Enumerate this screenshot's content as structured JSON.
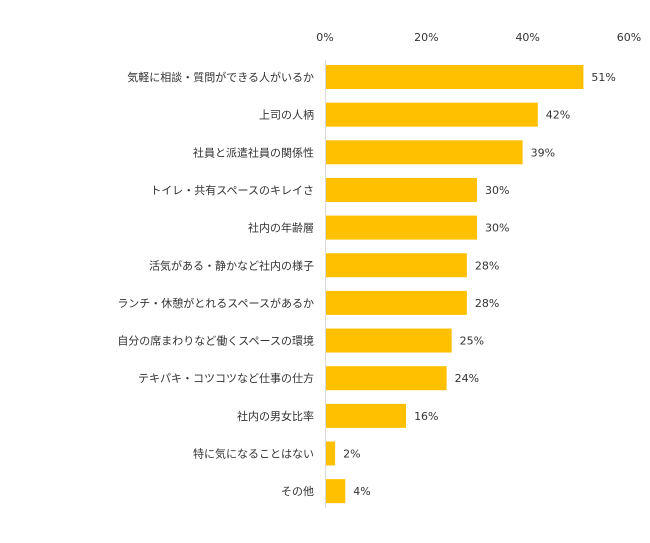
{
  "chart_data": {
    "type": "bar",
    "orientation": "horizontal",
    "categories": [
      "気軽に相談・質問ができる人がいるか",
      "上司の人柄",
      "社員と派遣社員の関係性",
      "トイレ・共有スペースのキレイさ",
      "社内の年齢層",
      "活気がある・静かなど社内の様子",
      "ランチ・休憩がとれるスペースがあるか",
      "自分の席まわりなど働くスペースの環境",
      "テキパキ・コツコツなど仕事の仕方",
      "社内の男女比率",
      "特に気になることはない",
      "その他"
    ],
    "values": [
      51,
      42,
      39,
      30,
      30,
      28,
      28,
      25,
      24,
      16,
      2,
      4
    ],
    "value_labels": [
      "51%",
      "42%",
      "39%",
      "30%",
      "30%",
      "28%",
      "28%",
      "25%",
      "24%",
      "16%",
      "2%",
      "4%"
    ],
    "xlim": [
      0,
      60
    ],
    "x_ticks": [
      0,
      20,
      40,
      60
    ],
    "x_tick_labels": [
      "0%",
      "20%",
      "40%",
      "60%"
    ],
    "axis_position": "top",
    "grid": false,
    "legend": "none",
    "bar_color": "#FFC000",
    "axis_color": "#D9D9D9",
    "text_color": "#333333",
    "title": "",
    "xlabel": "",
    "ylabel": ""
  }
}
